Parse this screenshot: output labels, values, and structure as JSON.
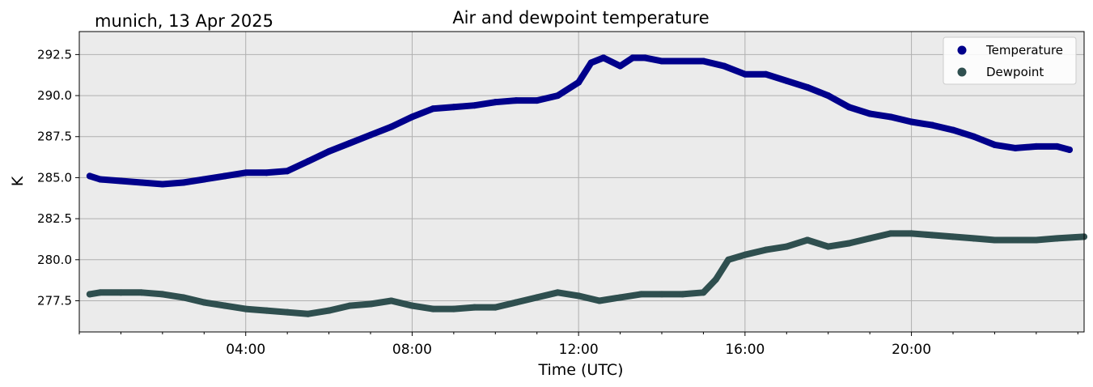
{
  "chart_data": {
    "type": "line",
    "title": "Air and dewpoint temperature",
    "subtitle": "munich, 13 Apr 2025",
    "xlabel": "Time (UTC)",
    "ylabel": "K",
    "xlim": [
      0,
      24.15
    ],
    "ylim": [
      275.6,
      293.9
    ],
    "x_ticks": [
      {
        "value": 4,
        "label": "04:00"
      },
      {
        "value": 8,
        "label": "08:00"
      },
      {
        "value": 12,
        "label": "12:00"
      },
      {
        "value": 16,
        "label": "16:00"
      },
      {
        "value": 20,
        "label": "20:00"
      }
    ],
    "y_ticks": [
      {
        "value": 277.5,
        "label": "277.5"
      },
      {
        "value": 280.0,
        "label": "280.0"
      },
      {
        "value": 282.5,
        "label": "282.5"
      },
      {
        "value": 285.0,
        "label": "285.0"
      },
      {
        "value": 287.5,
        "label": "287.5"
      },
      {
        "value": 290.0,
        "label": "290.0"
      },
      {
        "value": 292.5,
        "label": "292.5"
      }
    ],
    "grid": true,
    "background": "#ebebeb",
    "legend_position": "top-right",
    "series": [
      {
        "name": "Temperature",
        "color": "#00008b",
        "raw_color": "#7aa6a6",
        "x": [
          0.25,
          0.5,
          1.0,
          1.5,
          2.0,
          2.5,
          3.0,
          3.5,
          4.0,
          4.5,
          5.0,
          5.5,
          6.0,
          6.5,
          7.0,
          7.5,
          8.0,
          8.5,
          9.0,
          9.5,
          10.0,
          10.5,
          11.0,
          11.5,
          12.0,
          12.3,
          12.6,
          13.0,
          13.3,
          13.6,
          14.0,
          14.5,
          15.0,
          15.5,
          16.0,
          16.5,
          17.0,
          17.5,
          18.0,
          18.5,
          19.0,
          19.5,
          20.0,
          20.5,
          21.0,
          21.5,
          22.0,
          22.5,
          23.0,
          23.5,
          23.8
        ],
        "values": [
          285.1,
          284.9,
          284.8,
          284.7,
          284.6,
          284.7,
          284.9,
          285.1,
          285.3,
          285.3,
          285.4,
          286.0,
          286.6,
          287.1,
          287.6,
          288.1,
          288.7,
          289.2,
          289.3,
          289.4,
          289.6,
          289.7,
          289.7,
          290.0,
          290.8,
          292.0,
          292.3,
          291.8,
          292.3,
          292.3,
          292.1,
          292.1,
          292.1,
          291.8,
          291.3,
          291.3,
          290.9,
          290.5,
          290.0,
          289.3,
          288.9,
          288.7,
          288.4,
          288.2,
          287.9,
          287.5,
          287.0,
          286.8,
          286.9,
          286.9,
          286.7
        ]
      },
      {
        "name": "Dewpoint",
        "color": "#2f4f4f",
        "raw_color": "#1e9be8",
        "x": [
          0.25,
          0.5,
          1.0,
          1.5,
          2.0,
          2.5,
          3.0,
          3.5,
          4.0,
          4.5,
          5.0,
          5.5,
          6.0,
          6.5,
          7.0,
          7.5,
          8.0,
          8.5,
          9.0,
          9.5,
          10.0,
          10.5,
          11.0,
          11.5,
          12.0,
          12.5,
          13.0,
          13.5,
          14.0,
          14.5,
          15.0,
          15.3,
          15.6,
          16.0,
          16.5,
          17.0,
          17.5,
          18.0,
          18.5,
          19.0,
          19.5,
          20.0,
          20.5,
          21.0,
          21.5,
          22.0,
          22.5,
          23.0,
          23.5,
          24.15
        ],
        "values": [
          277.9,
          278.0,
          278.0,
          278.0,
          277.9,
          277.7,
          277.4,
          277.2,
          277.0,
          276.9,
          276.8,
          276.7,
          276.9,
          277.2,
          277.3,
          277.5,
          277.2,
          277.0,
          277.0,
          277.1,
          277.1,
          277.4,
          277.7,
          278.0,
          277.8,
          277.5,
          277.7,
          277.9,
          277.9,
          277.9,
          278.0,
          278.8,
          280.0,
          280.3,
          280.6,
          280.8,
          281.2,
          280.8,
          281.0,
          281.3,
          281.6,
          281.6,
          281.5,
          281.4,
          281.3,
          281.2,
          281.2,
          281.2,
          281.3,
          281.4
        ]
      }
    ]
  }
}
